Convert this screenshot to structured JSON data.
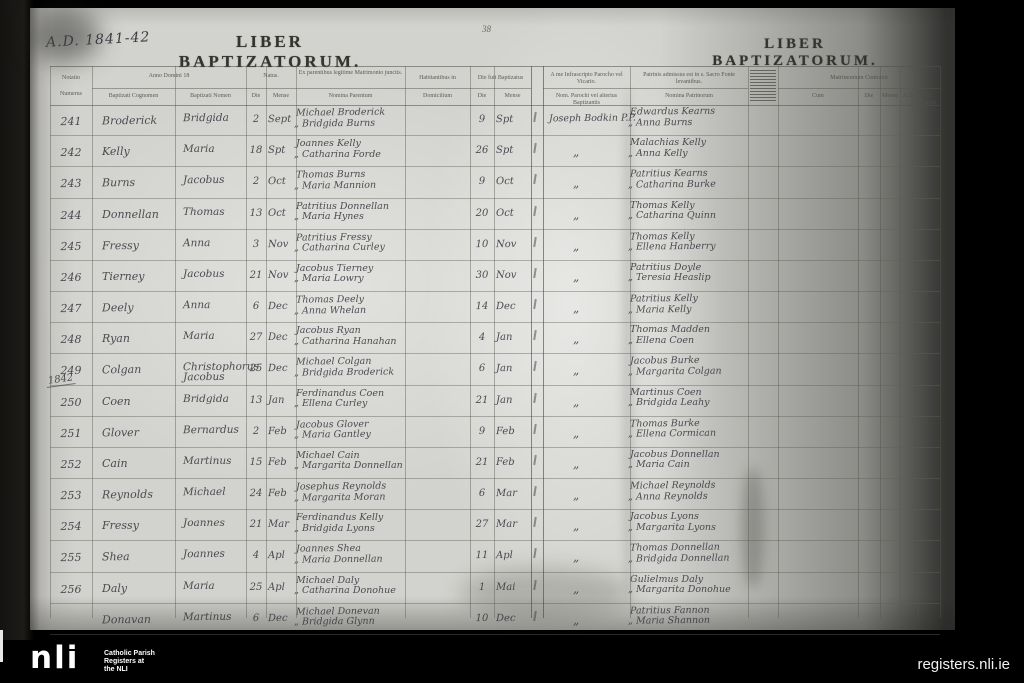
{
  "page": {
    "year_note": "A.D. 1841-42",
    "title_left": "LIBER BAPTIZATORUM.",
    "title_right": "LIBER BAPTIZATORUM.",
    "page_number": "38"
  },
  "register": {
    "headers": {
      "numerus_line1": "Notatio",
      "numerus_line2": "Numerus",
      "anno": "Anno Domini 18",
      "cognomen": "Baptizati Cognomen",
      "nomen": "Baptizati Nomen",
      "natus": "Natus.",
      "die": "Die",
      "mense": "Mense",
      "parentibus": "Ex parentibus legitime Matrimonio junctis.",
      "nomina_parentum": "Nomina Parentum",
      "habitantibus": "Habitantibus in",
      "domicilium": "Domicilium",
      "baptizatus": "Die fuit Baptizatus",
      "a_me": "A me Infrascripto Parocho vel Vicario.",
      "nom_parochi": "Nom. Parochi vel alterius Baptizantis",
      "patrinis": "Patrinis admissus est in s. Sacro Fonte levantibus.",
      "nomina_patrinorum": "Nomina Patrinorum",
      "matrimonium": "Matrimonium Contraxit",
      "cum": "Cum",
      "ad": "A.D.",
      "in_forma": "In Forma."
    },
    "rows": [
      {
        "num": "241",
        "cognomen": "Broderick",
        "nomen": "Bridgida",
        "n_die": "2",
        "n_mense": "Sept",
        "father": "Michael Broderick",
        "mother": "„ Bridgida Burns",
        "b_die": "9",
        "b_mense": "Spt",
        "priest": "Joseph Bodkin P.P.",
        "sp1": "Edwardus Kearns",
        "sp2": "„ Anna Burns"
      },
      {
        "num": "242",
        "cognomen": "Kelly",
        "nomen": "Maria",
        "n_die": "18",
        "n_mense": "Spt",
        "father": "Joannes Kelly",
        "mother": "„ Catharina Forde",
        "b_die": "26",
        "b_mense": "Spt",
        "priest": "„",
        "sp1": "Malachias Kelly",
        "sp2": "„ Anna Kelly"
      },
      {
        "num": "243",
        "cognomen": "Burns",
        "nomen": "Jacobus",
        "n_die": "2",
        "n_mense": "Oct",
        "father": "Thomas Burns",
        "mother": "„ Maria Mannion",
        "b_die": "9",
        "b_mense": "Oct",
        "priest": "„",
        "sp1": "Patritius Kearns",
        "sp2": "„ Catharina Burke"
      },
      {
        "num": "244",
        "cognomen": "Donnellan",
        "nomen": "Thomas",
        "n_die": "13",
        "n_mense": "Oct",
        "father": "Patritius Donnellan",
        "mother": "„ Maria Hynes",
        "b_die": "20",
        "b_mense": "Oct",
        "priest": "„",
        "sp1": "Thomas Kelly",
        "sp2": "„ Catharina Quinn"
      },
      {
        "num": "245",
        "cognomen": "Fressy",
        "nomen": "Anna",
        "n_die": "3",
        "n_mense": "Nov",
        "father": "Patritius Fressy",
        "mother": "„ Catharina Curley",
        "b_die": "10",
        "b_mense": "Nov",
        "priest": "„",
        "sp1": "Thomas Kelly",
        "sp2": "„ Ellena Hanberry"
      },
      {
        "num": "246",
        "cognomen": "Tierney",
        "nomen": "Jacobus",
        "n_die": "21",
        "n_mense": "Nov",
        "father": "Jacobus Tierney",
        "mother": "„ Maria Lowry",
        "b_die": "30",
        "b_mense": "Nov",
        "priest": "„",
        "sp1": "Patritius Doyle",
        "sp2": "„ Teresia Heaslip"
      },
      {
        "num": "247",
        "cognomen": "Deely",
        "nomen": "Anna",
        "n_die": "6",
        "n_mense": "Dec",
        "father": "Thomas Deely",
        "mother": "„ Anna Whelan",
        "b_die": "14",
        "b_mense": "Dec",
        "priest": "„",
        "sp1": "Patritius Kelly",
        "sp2": "„ Maria Kelly"
      },
      {
        "num": "248",
        "cognomen": "Ryan",
        "nomen": "Maria",
        "n_die": "27",
        "n_mense": "Dec",
        "father": "Jacobus Ryan",
        "mother": "„ Catharina Hanahan",
        "b_die": "4",
        "b_mense": "Jan",
        "priest": "„",
        "sp1": "Thomas Madden",
        "sp2": "„ Ellena Coen"
      },
      {
        "num": "249",
        "cognomen": "Colgan",
        "nomen": "Christophorus Jacobus",
        "n_die": "25",
        "n_mense": "Dec",
        "father": "Michael Colgan",
        "mother": "„ Bridgida Broderick",
        "b_die": "6",
        "b_mense": "Jan",
        "priest": "„",
        "sp1": "Jacobus Burke",
        "sp2": "„ Margarita Colgan"
      },
      {
        "num": "250",
        "year_marker": "1842",
        "cognomen": "Coen",
        "nomen": "Bridgida",
        "n_die": "13",
        "n_mense": "Jan",
        "father": "Ferdinandus Coen",
        "mother": "„ Ellena Curley",
        "b_die": "21",
        "b_mense": "Jan",
        "priest": "„",
        "sp1": "Martinus Coen",
        "sp2": "„ Bridgida Leahy"
      },
      {
        "num": "251",
        "cognomen": "Glover",
        "nomen": "Bernardus",
        "n_die": "2",
        "n_mense": "Feb",
        "father": "Jacobus Glover",
        "mother": "„ Maria Gantley",
        "b_die": "9",
        "b_mense": "Feb",
        "priest": "„",
        "sp1": "Thomas Burke",
        "sp2": "„ Ellena Cormican"
      },
      {
        "num": "252",
        "cognomen": "Cain",
        "nomen": "Martinus",
        "n_die": "15",
        "n_mense": "Feb",
        "father": "Michael Cain",
        "mother": "„ Margarita Donnellan",
        "b_die": "21",
        "b_mense": "Feb",
        "priest": "„",
        "sp1": "Jacobus Donnellan",
        "sp2": "„ Maria Cain"
      },
      {
        "num": "253",
        "cognomen": "Reynolds",
        "nomen": "Michael",
        "n_die": "24",
        "n_mense": "Feb",
        "father": "Josephus Reynolds",
        "mother": "„ Margarita Moran",
        "b_die": "6",
        "b_mense": "Mar",
        "priest": "„",
        "sp1": "Michael Reynolds",
        "sp2": "„ Anna Reynolds"
      },
      {
        "num": "254",
        "cognomen": "Fressy",
        "nomen": "Joannes",
        "n_die": "21",
        "n_mense": "Mar",
        "father": "Ferdinandus Kelly",
        "mother": "„ Bridgida Lyons",
        "b_die": "27",
        "b_mense": "Mar",
        "priest": "„",
        "sp1": "Jacobus Lyons",
        "sp2": "„ Margarita Lyons"
      },
      {
        "num": "255",
        "cognomen": "Shea",
        "nomen": "Joannes",
        "n_die": "4",
        "n_mense": "Apl",
        "father": "Joannes Shea",
        "mother": "„ Maria Donnellan",
        "b_die": "11",
        "b_mense": "Apl",
        "priest": "„",
        "sp1": "Thomas Donnellan",
        "sp2": "„ Bridgida Donnellan"
      },
      {
        "num": "256",
        "cognomen": "Daly",
        "nomen": "Maria",
        "n_die": "25",
        "n_mense": "Apl",
        "father": "Michael Daly",
        "mother": "„ Catharina Donohue",
        "b_die": "1",
        "b_mense": "Mai",
        "priest": "„",
        "sp1": "Gulielmus Daly",
        "sp2": "„ Margarita Donohue"
      },
      {
        "num": "",
        "cognomen": "Donavan",
        "nomen": "Martinus",
        "n_die": "6",
        "n_mense": "Dec",
        "father": "Michael Donevan",
        "mother": "„ Bridgida Glynn",
        "b_die": "10",
        "b_mense": "Dec",
        "priest": "„",
        "sp1": "Patritius Fannon",
        "sp2": "„ Maria Shannon"
      }
    ]
  },
  "branding": {
    "logo": "nli",
    "caption_lines": [
      "Catholic Parish",
      "Registers at",
      "the NLI"
    ],
    "site": "registers.nli.ie"
  }
}
